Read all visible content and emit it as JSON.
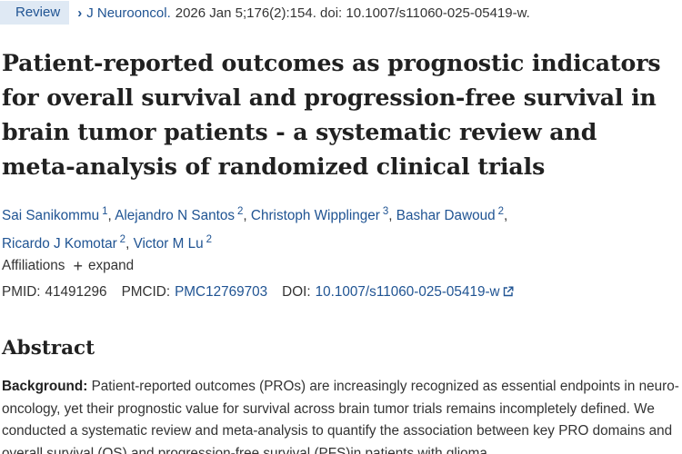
{
  "header": {
    "badge": "Review",
    "journal": "J Neurooncol.",
    "citation": "2026 Jan 5;176(2):154. doi: 10.1007/s11060-025-05419-w."
  },
  "title": "Patient-reported outcomes as prognostic indicators for overall survival and progression-free survival in brain tumor patients - a systematic review and meta-analysis of randomized clinical trials",
  "authors": [
    {
      "name": "Sai Sanikommu",
      "aff": "1"
    },
    {
      "name": "Alejandro N Santos",
      "aff": "2"
    },
    {
      "name": "Christoph Wipplinger",
      "aff": "3"
    },
    {
      "name": "Bashar Dawoud",
      "aff": "2"
    },
    {
      "name": "Ricardo J Komotar",
      "aff": "2"
    },
    {
      "name": "Victor M Lu",
      "aff": "2"
    }
  ],
  "affiliations": {
    "label": "Affiliations",
    "expand": "expand"
  },
  "identifiers": {
    "pmid_label": "PMID:",
    "pmid": "41491296",
    "pmcid_label": "PMCID:",
    "pmcid": "PMC12769703",
    "doi_label": "DOI:",
    "doi": "10.1007/s11060-025-05419-w"
  },
  "abstract": {
    "heading": "Abstract",
    "background_label": "Background:",
    "background_text": "Patient-reported outcomes (PROs) are increasingly recognized as essential endpoints in neuro-oncology, yet their prognostic value for survival across brain tumor trials remains incompletely defined. We conducted a systematic review and meta-analysis to quantify the association between key PRO domains and overall survival (OS) and progression-free survival (PFS)in patients with glioma"
  },
  "colors": {
    "link": "#205493",
    "badge_bg": "#dfe9f4"
  }
}
